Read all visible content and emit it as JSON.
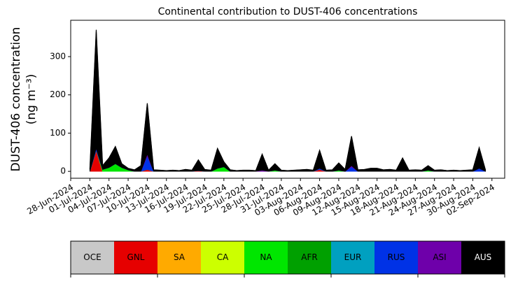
{
  "chart_data": {
    "type": "stacked_area",
    "title": "Continental contribution to DUST-406 concentrations",
    "ylabel": [
      "DUST-406 concentration",
      "(ng m⁻³)"
    ],
    "x": [
      "01-Jul-2024",
      "02-Jul-2024",
      "03-Jul-2024",
      "04-Jul-2024",
      "05-Jul-2024",
      "06-Jul-2024",
      "07-Jul-2024",
      "08-Jul-2024",
      "09-Jul-2024",
      "10-Jul-2024",
      "11-Jul-2024",
      "12-Jul-2024",
      "13-Jul-2024",
      "14-Jul-2024",
      "15-Jul-2024",
      "16-Jul-2024",
      "17-Jul-2024",
      "18-Jul-2024",
      "19-Jul-2024",
      "20-Jul-2024",
      "21-Jul-2024",
      "22-Jul-2024",
      "23-Jul-2024",
      "24-Jul-2024",
      "25-Jul-2024",
      "26-Jul-2024",
      "27-Jul-2024",
      "28-Jul-2024",
      "29-Jul-2024",
      "30-Jul-2024",
      "31-Jul-2024",
      "01-Aug-2024",
      "02-Aug-2024",
      "03-Aug-2024",
      "04-Aug-2024",
      "05-Aug-2024",
      "06-Aug-2024",
      "07-Aug-2024",
      "08-Aug-2024",
      "09-Aug-2024",
      "10-Aug-2024",
      "11-Aug-2024",
      "12-Aug-2024",
      "13-Aug-2024",
      "14-Aug-2024",
      "15-Aug-2024",
      "16-Aug-2024",
      "17-Aug-2024",
      "18-Aug-2024",
      "19-Aug-2024",
      "20-Aug-2024",
      "21-Aug-2024",
      "22-Aug-2024",
      "23-Aug-2024",
      "24-Aug-2024",
      "25-Aug-2024",
      "26-Aug-2024",
      "27-Aug-2024",
      "28-Aug-2024",
      "29-Aug-2024",
      "30-Aug-2024",
      "31-Aug-2024",
      "01-Sep-2024"
    ],
    "series": [
      {
        "name": "OCE",
        "color": "#c8c8c8",
        "values": [
          0,
          0,
          0,
          0,
          0,
          0,
          0,
          0,
          0,
          0,
          0,
          0,
          0,
          0,
          0,
          0,
          0,
          0,
          0,
          0,
          0,
          0,
          0,
          0,
          0,
          0,
          0,
          0,
          0,
          0,
          0,
          0,
          0,
          0,
          0,
          0,
          0,
          0,
          0,
          0,
          0,
          0,
          0,
          0,
          0,
          0,
          0,
          0,
          0,
          0,
          0,
          0,
          0,
          0,
          0,
          0,
          0,
          0,
          0,
          0,
          0,
          0,
          0
        ]
      },
      {
        "name": "GNL",
        "color": "#e60000",
        "values": [
          0,
          55,
          0,
          0,
          0,
          0,
          0,
          0,
          0,
          5,
          0,
          0,
          0,
          0,
          0,
          0,
          0,
          2,
          0,
          0,
          0,
          0,
          0,
          0,
          0,
          0,
          0,
          0,
          0,
          0,
          0,
          0,
          0,
          0,
          0,
          0,
          5,
          0,
          0,
          0,
          0,
          0,
          0,
          0,
          0,
          0,
          0,
          0,
          0,
          0,
          0,
          0,
          0,
          0,
          0,
          0,
          0,
          0,
          0,
          0,
          0,
          0,
          0
        ]
      },
      {
        "name": "SA",
        "color": "#ffaa00",
        "values": [
          0,
          0,
          0,
          0,
          0,
          0,
          0,
          0,
          0,
          0,
          0,
          0,
          0,
          0,
          0,
          0,
          0,
          0,
          0,
          0,
          0,
          0,
          0,
          0,
          0,
          0,
          0,
          0,
          0,
          0,
          0,
          0,
          0,
          0,
          0,
          0,
          0,
          0,
          0,
          0,
          0,
          0,
          0,
          0,
          0,
          0,
          0,
          0,
          0,
          0,
          0,
          0,
          0,
          0,
          0,
          0,
          0,
          0,
          0,
          0,
          0,
          0,
          0
        ]
      },
      {
        "name": "CA",
        "color": "#ccff00",
        "values": [
          0,
          0,
          0,
          0,
          0,
          0,
          0,
          0,
          0,
          0,
          0,
          0,
          0,
          0,
          0,
          0,
          0,
          0,
          0,
          0,
          0,
          0,
          0,
          0,
          0,
          0,
          0,
          0,
          0,
          0,
          0,
          0,
          0,
          0,
          0,
          0,
          0,
          0,
          0,
          0,
          0,
          0,
          0,
          0,
          0,
          0,
          0,
          0,
          0,
          0,
          0,
          0,
          0,
          0,
          0,
          0,
          0,
          0,
          0,
          0,
          0,
          0,
          0
        ]
      },
      {
        "name": "NA",
        "color": "#00e600",
        "values": [
          0,
          0,
          5,
          10,
          20,
          10,
          4,
          0,
          0,
          0,
          0,
          0,
          0,
          0,
          0,
          0,
          0,
          0,
          0,
          0,
          8,
          12,
          0,
          0,
          0,
          0,
          0,
          0,
          0,
          3,
          0,
          0,
          0,
          0,
          0,
          0,
          0,
          0,
          0,
          3,
          0,
          0,
          0,
          0,
          0,
          0,
          0,
          0,
          0,
          0,
          0,
          0,
          0,
          3,
          0,
          0,
          0,
          0,
          0,
          0,
          0,
          0,
          0
        ]
      },
      {
        "name": "AFR",
        "color": "#00a000",
        "values": [
          0,
          0,
          0,
          0,
          0,
          0,
          0,
          0,
          0,
          0,
          0,
          0,
          0,
          0,
          0,
          0,
          0,
          0,
          0,
          0,
          0,
          0,
          0,
          0,
          0,
          0,
          0,
          0,
          0,
          0,
          0,
          0,
          0,
          0,
          0,
          0,
          0,
          0,
          0,
          0,
          0,
          0,
          0,
          0,
          0,
          0,
          0,
          0,
          0,
          0,
          0,
          0,
          0,
          0,
          0,
          0,
          0,
          0,
          0,
          0,
          0,
          0,
          0
        ]
      },
      {
        "name": "EUR",
        "color": "#00a0c0",
        "values": [
          0,
          0,
          0,
          0,
          0,
          0,
          0,
          0,
          0,
          0,
          0,
          0,
          0,
          0,
          0,
          0,
          0,
          0,
          0,
          0,
          0,
          0,
          0,
          0,
          0,
          0,
          0,
          0,
          0,
          0,
          0,
          0,
          0,
          0,
          0,
          0,
          0,
          0,
          0,
          0,
          0,
          0,
          0,
          0,
          0,
          0,
          0,
          0,
          0,
          0,
          0,
          0,
          0,
          0,
          0,
          0,
          0,
          0,
          0,
          0,
          0,
          0,
          0
        ]
      },
      {
        "name": "RUS",
        "color": "#0032e6",
        "values": [
          0,
          5,
          0,
          0,
          0,
          0,
          0,
          0,
          0,
          35,
          0,
          0,
          0,
          0,
          0,
          0,
          0,
          0,
          0,
          0,
          0,
          0,
          0,
          0,
          0,
          0,
          0,
          0,
          0,
          0,
          0,
          0,
          0,
          0,
          0,
          0,
          3,
          0,
          0,
          0,
          0,
          12,
          0,
          0,
          0,
          0,
          0,
          0,
          0,
          0,
          0,
          0,
          0,
          0,
          0,
          0,
          0,
          0,
          0,
          0,
          0,
          8,
          0
        ]
      },
      {
        "name": "ASI",
        "color": "#6e00aa",
        "values": [
          0,
          0,
          0,
          0,
          0,
          0,
          0,
          0,
          0,
          5,
          0,
          0,
          0,
          0,
          0,
          0,
          0,
          0,
          0,
          0,
          0,
          0,
          0,
          0,
          0,
          0,
          0,
          3,
          0,
          0,
          0,
          0,
          0,
          0,
          0,
          0,
          0,
          0,
          0,
          0,
          0,
          3,
          0,
          0,
          0,
          0,
          0,
          0,
          0,
          0,
          0,
          0,
          0,
          0,
          0,
          0,
          0,
          0,
          0,
          0,
          0,
          0,
          0
        ]
      },
      {
        "name": "AUS",
        "color": "#000000",
        "values": [
          5,
          310,
          10,
          25,
          45,
          10,
          4,
          4,
          15,
          133,
          4,
          3,
          2,
          3,
          2,
          5,
          3,
          28,
          5,
          3,
          52,
          13,
          4,
          2,
          3,
          3,
          2,
          42,
          3,
          17,
          3,
          2,
          3,
          4,
          5,
          3,
          47,
          3,
          4,
          19,
          5,
          77,
          4,
          5,
          8,
          8,
          4,
          5,
          3,
          35,
          3,
          4,
          3,
          12,
          3,
          4,
          2,
          3,
          2,
          3,
          4,
          54,
          3
        ]
      }
    ],
    "xlim": [
      "28-Jun-2024",
      "04-Sep-2024"
    ],
    "xticks": [
      "28-Jun-2024",
      "01-Jul-2024",
      "04-Jul-2024",
      "07-Jul-2024",
      "10-Jul-2024",
      "13-Jul-2024",
      "16-Jul-2024",
      "19-Jul-2024",
      "22-Jul-2024",
      "25-Jul-2024",
      "28-Jul-2024",
      "31-Jul-2024",
      "03-Aug-2024",
      "06-Aug-2024",
      "09-Aug-2024",
      "12-Aug-2024",
      "15-Aug-2024",
      "18-Aug-2024",
      "21-Aug-2024",
      "24-Aug-2024",
      "27-Aug-2024",
      "30-Aug-2024",
      "02-Sep-2024"
    ],
    "ylim": [
      -18,
      395
    ],
    "yticks": [
      0,
      100,
      200,
      300
    ],
    "grid": false
  }
}
